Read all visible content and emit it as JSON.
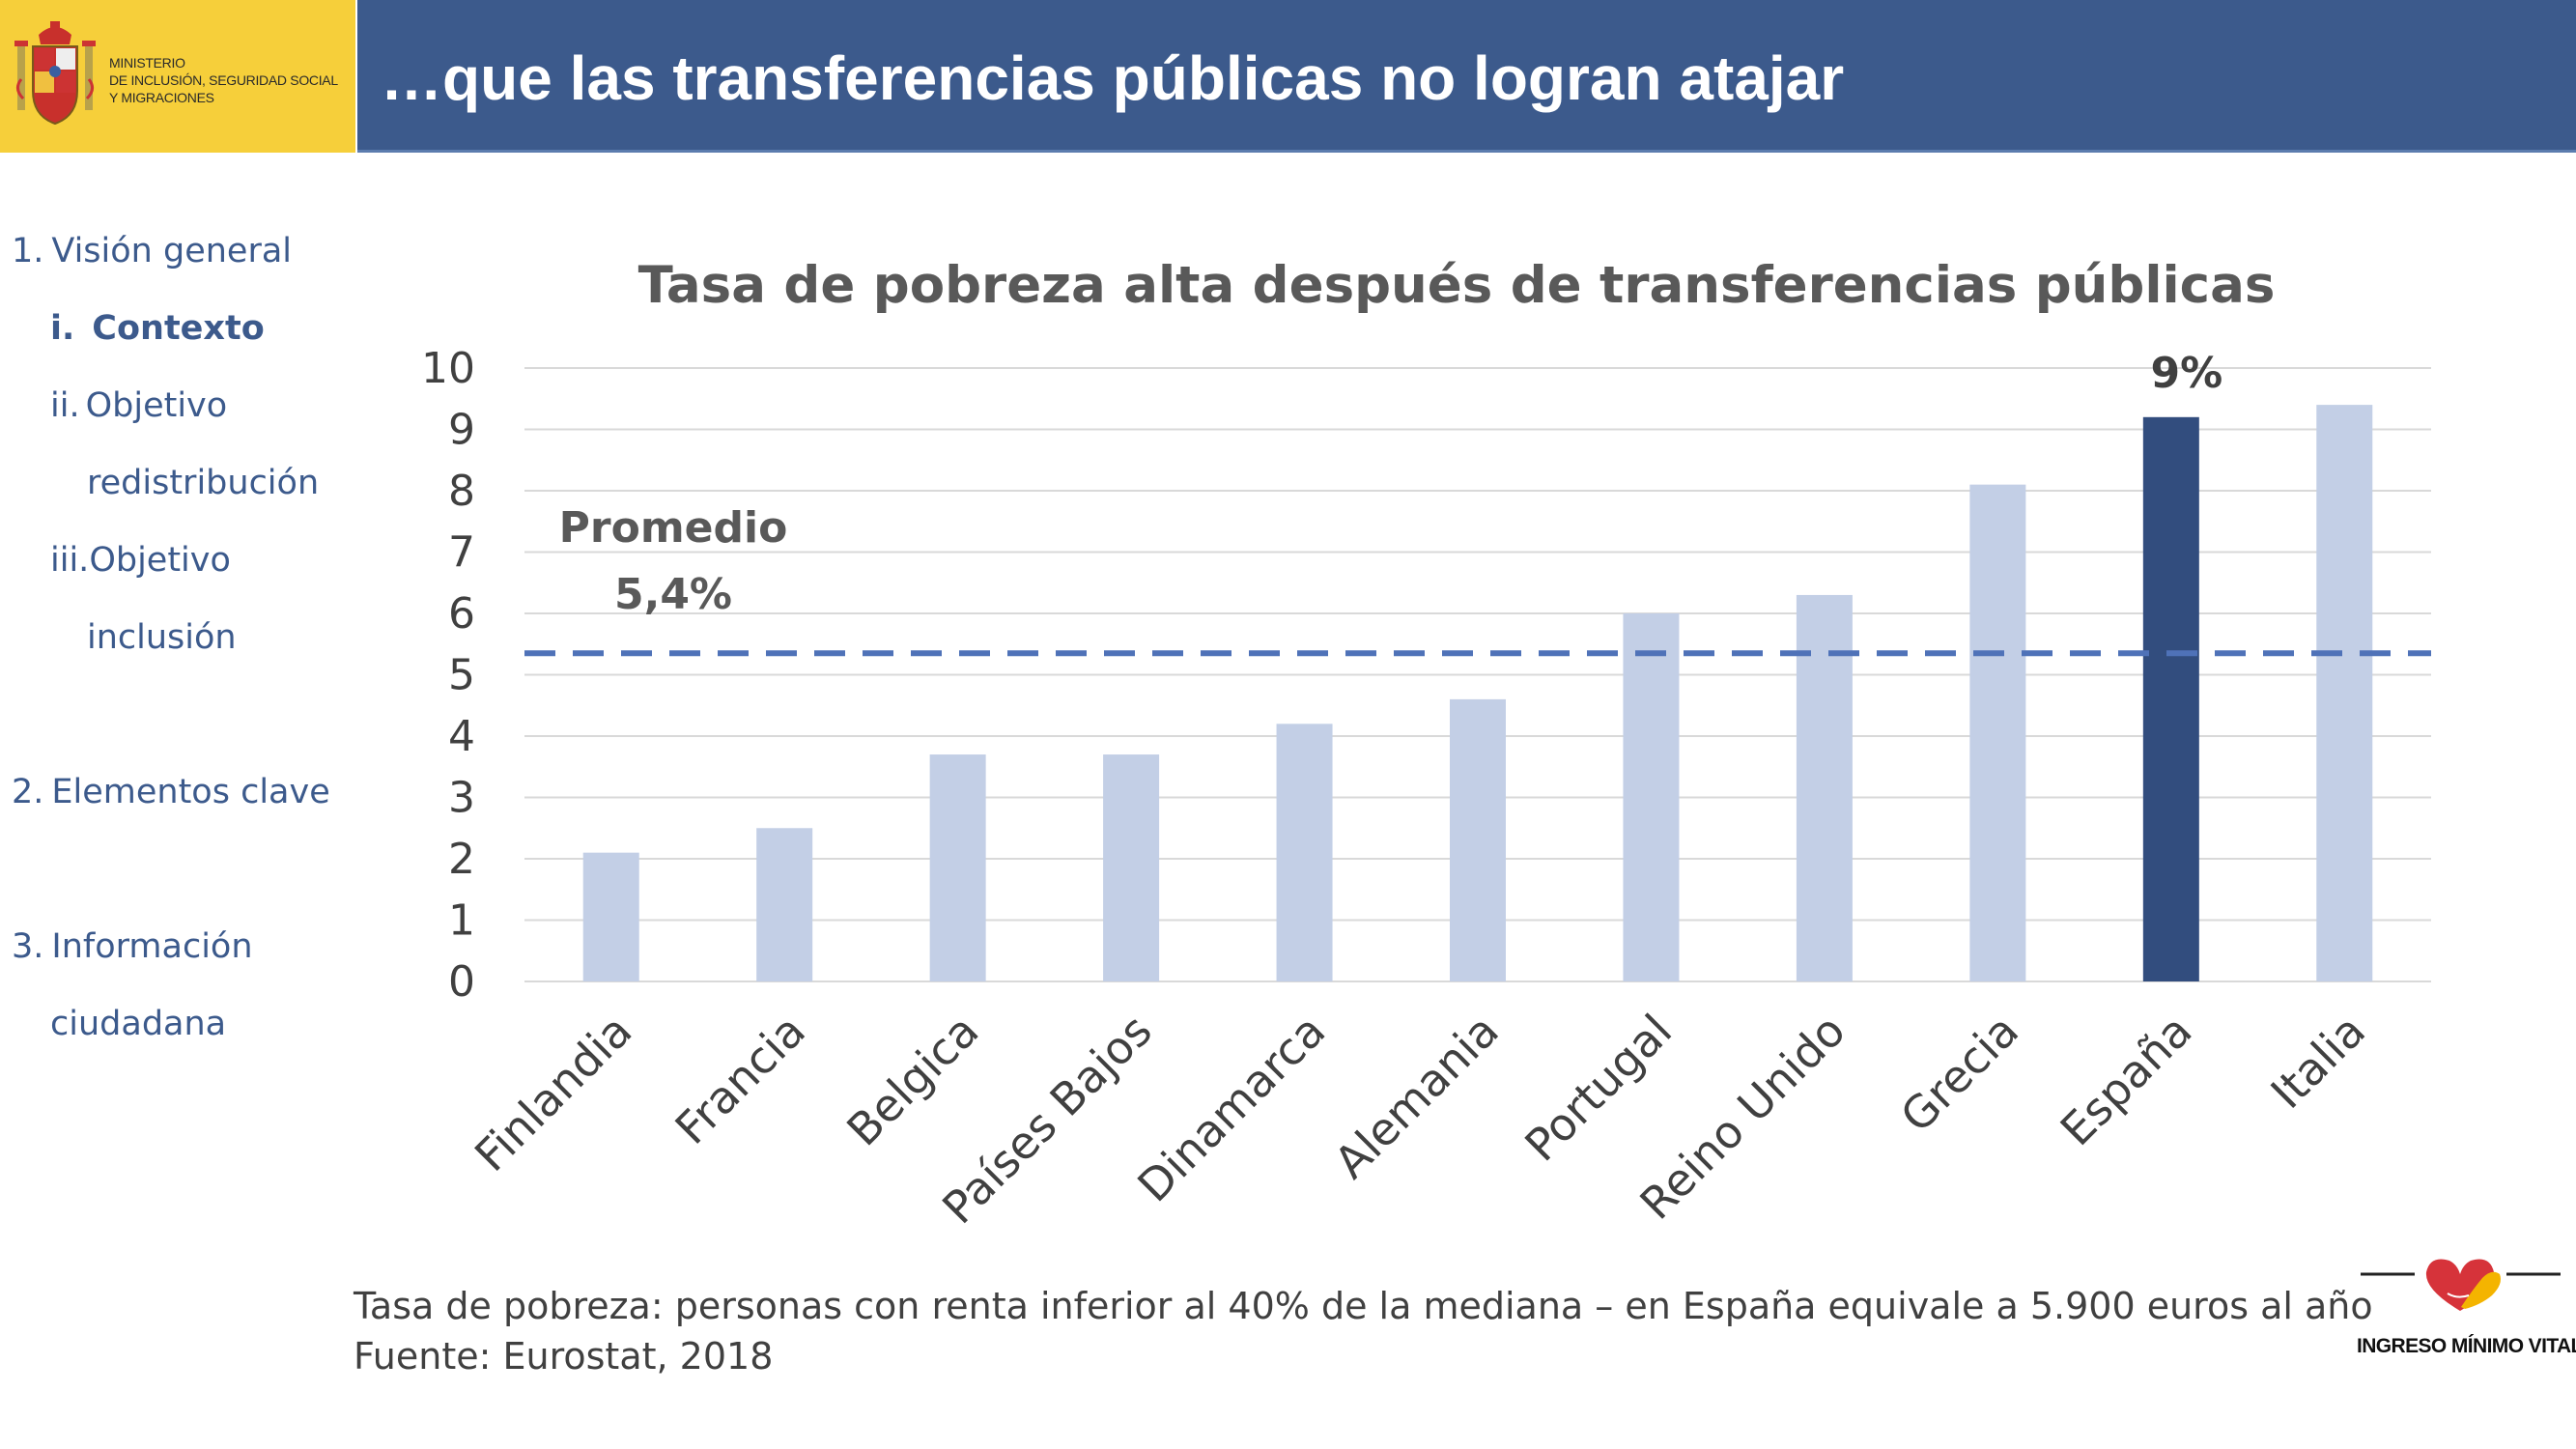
{
  "header": {
    "ministry_lines": [
      "MINISTERIO",
      "DE INCLUSIÓN, SEGURIDAD SOCIAL",
      "Y MIGRACIONES"
    ],
    "title": "…que las transferencias públicas no logran atajar",
    "colors": {
      "logo_bg": "#f6cf3a",
      "title_bg": "#3c5a8c",
      "title_text": "#ffffff"
    }
  },
  "nav": {
    "items": [
      {
        "num": "1.",
        "label": "Visión general"
      },
      {
        "num": "i.",
        "label": "Contexto"
      },
      {
        "num": "ii.",
        "label": "Objetivo"
      },
      {
        "num": "",
        "label": "redistribución"
      },
      {
        "num": "iii.",
        "label": "Objetivo"
      },
      {
        "num": "",
        "label": "inclusión"
      },
      {
        "num": "2.",
        "label": "Elementos clave"
      },
      {
        "num": "3.",
        "label": "Información"
      },
      {
        "num": "",
        "label": "ciudadana"
      }
    ],
    "color": "#3c5a8c"
  },
  "chart_data": {
    "type": "bar",
    "title": "Tasa de pobreza alta después de transferencias públicas",
    "categories": [
      "Finlandia",
      "Francia",
      "Belgica",
      "Países Bajos",
      "Dinamarca",
      "Alemania",
      "Portugal",
      "Reino Unido",
      "Grecia",
      "España",
      "Italia"
    ],
    "values": [
      2.1,
      2.5,
      3.7,
      3.7,
      4.2,
      4.6,
      6.0,
      6.3,
      8.1,
      9.2,
      9.4
    ],
    "highlight_index": 9,
    "highlight_label": "9%",
    "ylim": [
      0,
      10
    ],
    "yticks": [
      "0",
      "1",
      "2",
      "3",
      "4",
      "5",
      "6",
      "7",
      "8",
      "9",
      "10"
    ],
    "grid": true,
    "average": {
      "value": 5.35,
      "label_line1": "Promedio",
      "label_line2": "5,4%"
    },
    "colors": {
      "bar": "#c3cfe6",
      "highlight": "#324d7e",
      "average_line": "#4f72b8",
      "grid": "#d9d9d9"
    },
    "xlabel": "",
    "ylabel": ""
  },
  "footer": {
    "note": "Tasa de pobreza: personas con renta inferior al 40% de la mediana – en España equivale a 5.900 euros al año",
    "source": "Fuente: Eurostat, 2018"
  },
  "brand": {
    "logo_text": "INGRESO MÍNIMO VITAL"
  }
}
